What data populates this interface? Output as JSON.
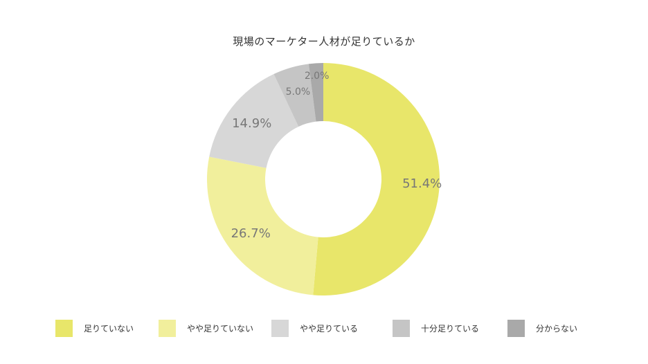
{
  "chart_data": {
    "type": "pie",
    "title": "現場のマーケター人材が足りているか",
    "categories": [
      "足りていない",
      "やや足りていない",
      "やや足りている",
      "十分足りている",
      "分からない"
    ],
    "values": [
      51.4,
      26.7,
      14.9,
      5.0,
      2.0
    ],
    "value_labels": [
      "51.4%",
      "26.7%",
      "14.9%",
      "5.0%",
      "2.0%"
    ],
    "colors": [
      "#e8e66a",
      "#f1ef9c",
      "#d7d7d7",
      "#c5c5c5",
      "#a9a9a9"
    ],
    "donut": true,
    "legend_position": "bottom"
  }
}
